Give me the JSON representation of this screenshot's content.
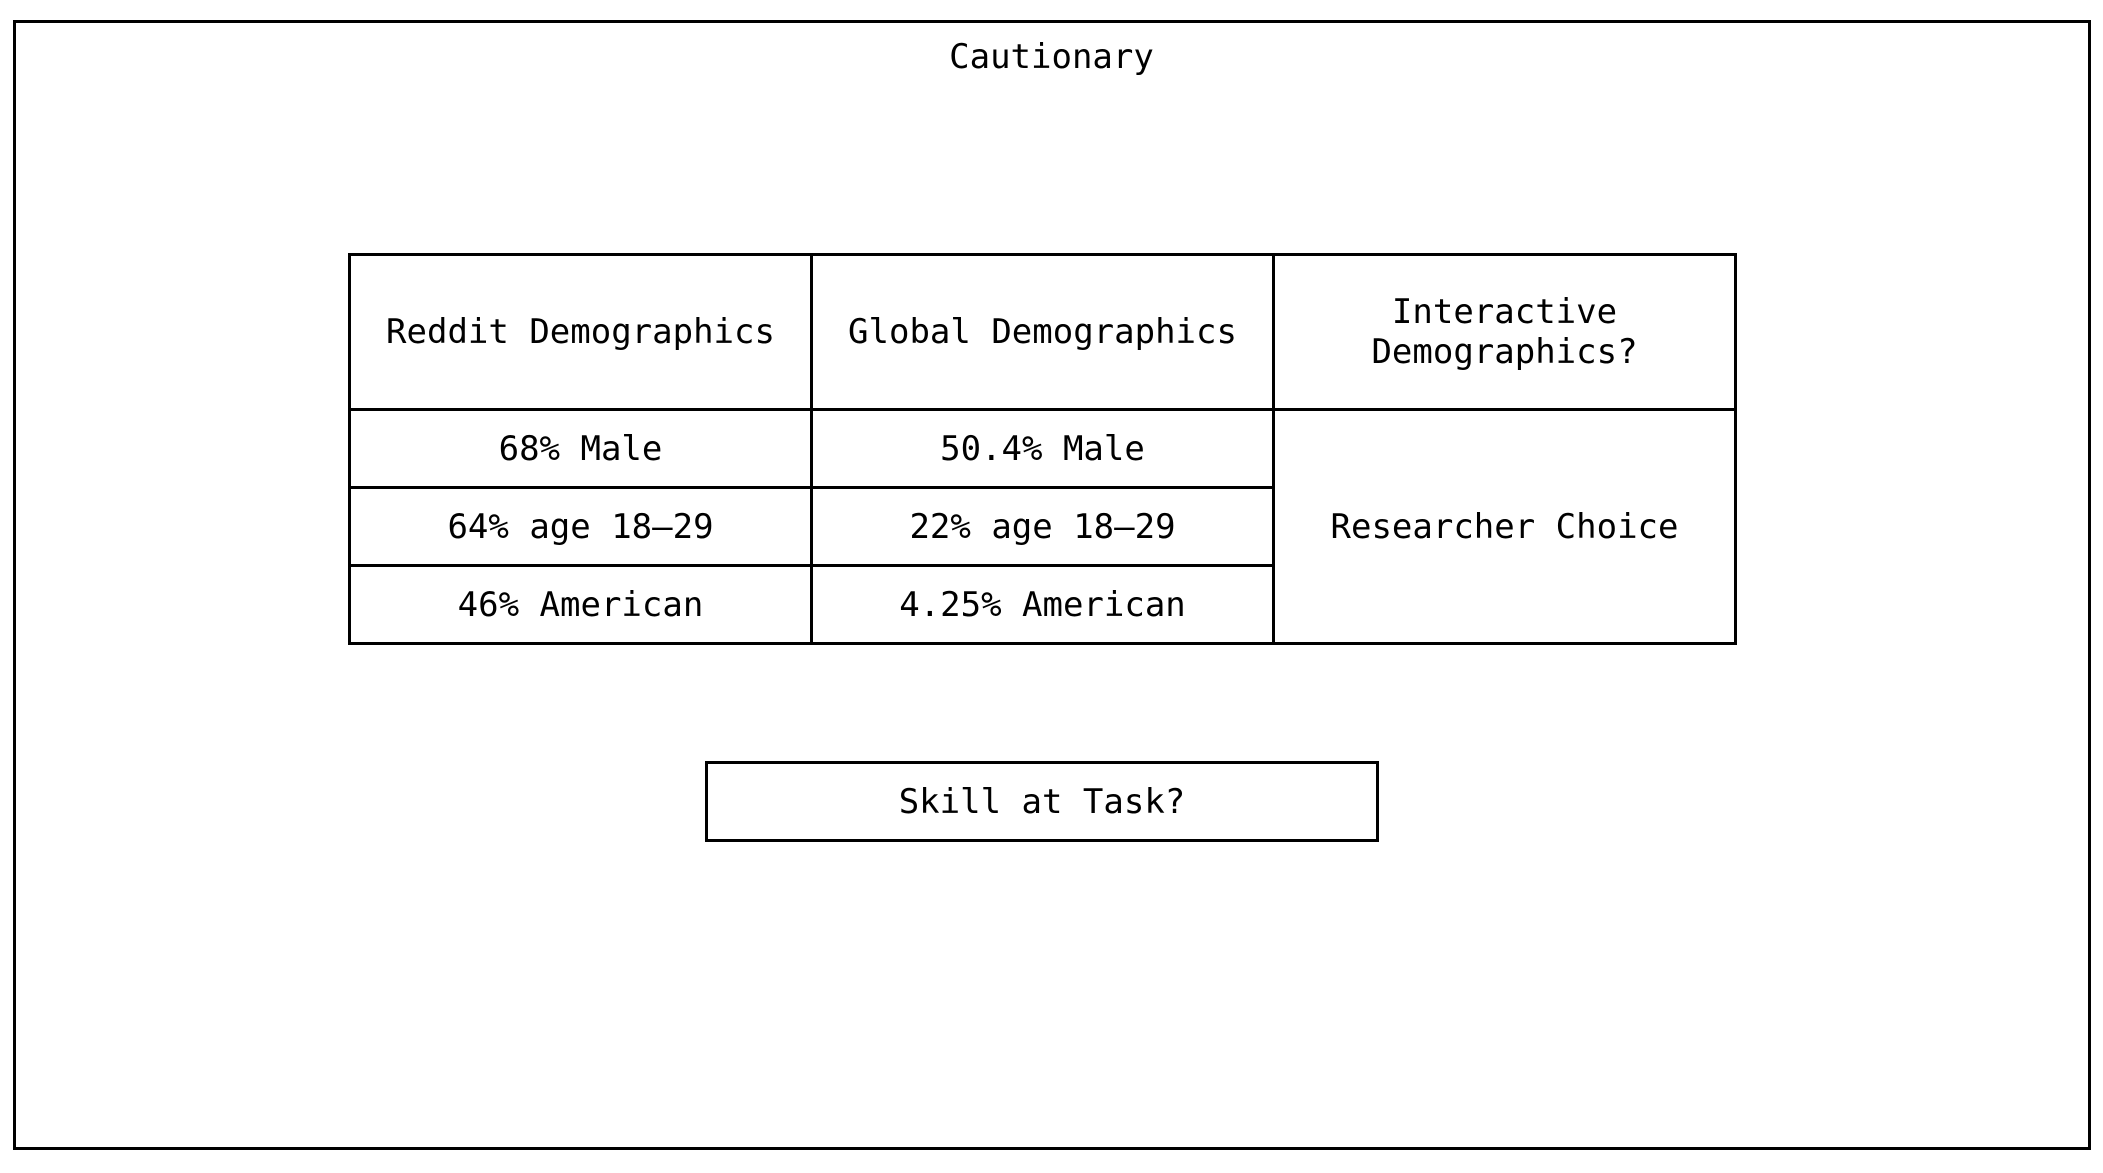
{
  "title": "Cautionary",
  "table": {
    "headers": {
      "reddit": "Reddit Demographics",
      "global": "Global Demographics",
      "interactive": "Interactive Demographics?"
    },
    "rows": [
      {
        "reddit": "68% Male",
        "global": "50.4% Male"
      },
      {
        "reddit": "64% age 18–29",
        "global": "22% age 18–29"
      },
      {
        "reddit": "46% American",
        "global": "4.25% American"
      }
    ],
    "interactive_value": "Researcher Choice"
  },
  "skill_box": "Skill at Task?"
}
